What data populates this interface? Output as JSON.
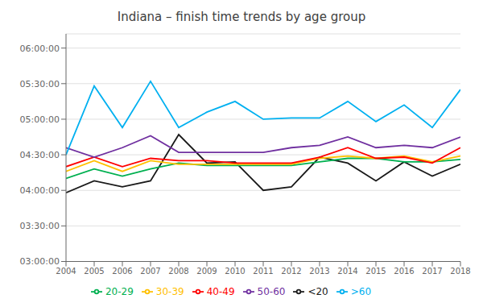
{
  "chart_data": {
    "type": "line",
    "title": "Indiana – finish time trends by age group",
    "x": [
      2004,
      2005,
      2006,
      2007,
      2008,
      2009,
      2010,
      2011,
      2012,
      2013,
      2014,
      2015,
      2016,
      2017,
      2018
    ],
    "xlim": [
      2004,
      2018
    ],
    "xticks": [
      2004,
      2005,
      2006,
      2007,
      2008,
      2009,
      2010,
      2011,
      2012,
      2013,
      2014,
      2015,
      2016,
      2017,
      2018
    ],
    "ylim": [
      180,
      372
    ],
    "yticks": [
      {
        "value": 180,
        "label": "03:00:00"
      },
      {
        "value": 210,
        "label": "03:30:00"
      },
      {
        "value": 240,
        "label": "04:00:00"
      },
      {
        "value": 270,
        "label": "04:30:00"
      },
      {
        "value": 300,
        "label": "05:00:00"
      },
      {
        "value": 330,
        "label": "05:30:00"
      },
      {
        "value": 360,
        "label": "06:00:00"
      }
    ],
    "grid": true,
    "legend": "bottom",
    "series": [
      {
        "name": "<20",
        "color": "#1a1a1a",
        "values": [
          238,
          248,
          243,
          248,
          287,
          263,
          264,
          240,
          243,
          268,
          263,
          248,
          264,
          252,
          262
        ]
      },
      {
        "name": "20-29",
        "color": "#00b050",
        "values": [
          250,
          258,
          252,
          258,
          263,
          261,
          261,
          261,
          261,
          264,
          267,
          267,
          264,
          264,
          266
        ]
      },
      {
        "name": "30-39",
        "color": "#ffc000",
        "values": [
          256,
          265,
          256,
          265,
          262,
          262,
          262,
          262,
          262,
          267,
          269,
          267,
          269,
          264,
          269
        ]
      },
      {
        "name": "40-49",
        "color": "#ff0000",
        "values": [
          260,
          268,
          260,
          267,
          265,
          265,
          263,
          263,
          263,
          268,
          276,
          267,
          268,
          263,
          276
        ]
      },
      {
        "name": "50-60",
        "color": "#7030a0",
        "values": [
          276,
          268,
          276,
          286,
          272,
          272,
          272,
          272,
          276,
          278,
          285,
          276,
          278,
          276,
          285
        ]
      },
      {
        "name": ">60",
        "color": "#00b0f0",
        "values": [
          270,
          328,
          293,
          332,
          293,
          306,
          315,
          300,
          301,
          301,
          315,
          298,
          312,
          293,
          325
        ]
      }
    ]
  }
}
